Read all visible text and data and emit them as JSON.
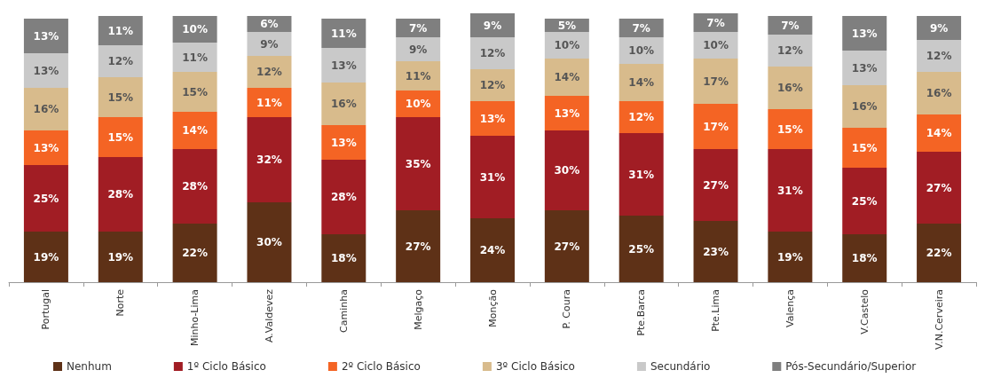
{
  "chart_data": {
    "type": "bar",
    "stacked": true,
    "legend": "bottom",
    "categories": [
      "Portugal",
      "Norte",
      "Minho-Lima",
      "A.Valdevez",
      "Caminha",
      "Melgaço",
      "Monção",
      "P. Coura",
      "Pte.Barca",
      "Pte.Lima",
      "Valença",
      "V.Castelo",
      "V.N.Cerveira"
    ],
    "series": [
      {
        "name": "Nenhum",
        "color": "#5e3117",
        "values": [
          19,
          19,
          22,
          30,
          18,
          27,
          24,
          27,
          25,
          23,
          19,
          18,
          22
        ],
        "value_labels": [
          "19%",
          "19%",
          "22%",
          "30%",
          "18%",
          "27%",
          "24%",
          "27%",
          "25%",
          "23%",
          "19%",
          "18%",
          "22%"
        ]
      },
      {
        "name": "1º Ciclo Básico",
        "color": "#a11d24",
        "values": [
          25,
          28,
          28,
          32,
          28,
          35,
          31,
          30,
          31,
          27,
          31,
          25,
          27
        ],
        "value_labels": [
          "25%",
          "28%",
          "28%",
          "32%",
          "28%",
          "35%",
          "31%",
          "30%",
          "31%",
          "27%",
          "31%",
          "25%",
          "27%"
        ]
      },
      {
        "name": "2º Ciclo Básico",
        "color": "#f46424",
        "values": [
          13,
          15,
          14,
          11,
          13,
          10,
          13,
          13,
          12,
          17,
          15,
          15,
          14
        ],
        "value_labels": [
          "13%",
          "15%",
          "14%",
          "11%",
          "13%",
          "10%",
          "13%",
          "13%",
          "12%",
          "17%",
          "15%",
          "15%",
          "14%"
        ]
      },
      {
        "name": "3º Ciclo Básico",
        "color": "#d8bb8c",
        "values": [
          16,
          15,
          15,
          12,
          16,
          11,
          12,
          14,
          14,
          17,
          16,
          16,
          16
        ],
        "value_labels": [
          "16%",
          "15%",
          "15%",
          "12%",
          "16%",
          "11%",
          "12%",
          "14%",
          "14%",
          "17%",
          "16%",
          "16%",
          "16%"
        ]
      },
      {
        "name": "Secundário",
        "color": "#c9c9c9",
        "values": [
          13,
          12,
          11,
          9,
          13,
          9,
          12,
          10,
          10,
          10,
          12,
          13,
          12
        ],
        "value_labels": [
          "13%",
          "12%",
          "11%",
          "9%",
          "13%",
          "9%",
          "12%",
          "10%",
          "10%",
          "10%",
          "12%",
          "13%",
          "12%"
        ]
      },
      {
        "name": "Pós-Secundário/Superior",
        "color": "#7f7f7f",
        "values": [
          13,
          11,
          10,
          6,
          11,
          7,
          9,
          5,
          7,
          7,
          7,
          13,
          9
        ],
        "value_labels": [
          "13%",
          "11%",
          "10%",
          "6%",
          "11%",
          "7%",
          "9%",
          "5%",
          "7%",
          "7%",
          "7%",
          "13%",
          "9%"
        ]
      }
    ]
  }
}
